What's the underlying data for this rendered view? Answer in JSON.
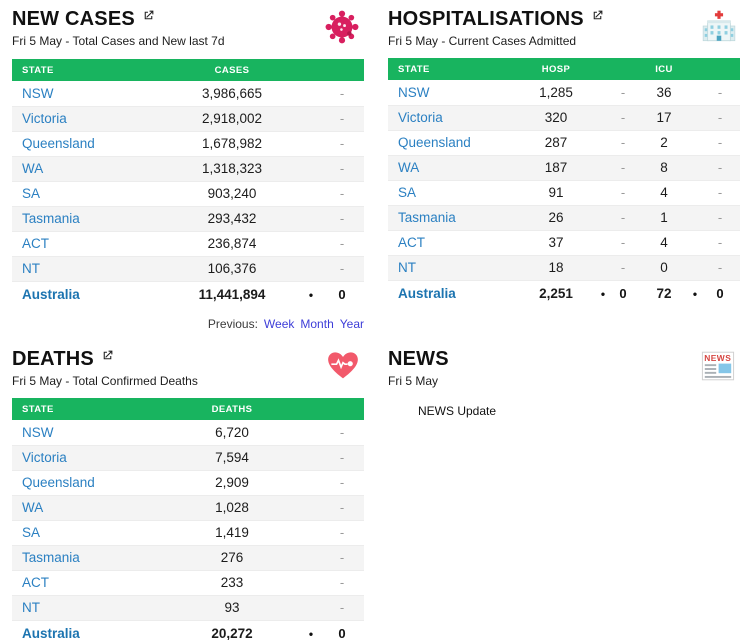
{
  "colors": {
    "table_header_green": "#18B45F",
    "state_link_blue": "#2B80C2",
    "total_link_blue": "#1C74B0",
    "change_dash_gray": "#999999",
    "previous_link_blue": "#3D3DD8",
    "virus_icon_pink": "#D81F5F",
    "heart_icon_red": "#F2596B",
    "hospital_cross_red": "#E23B3B",
    "news_headline_red": "#D64541"
  },
  "panels": {
    "new_cases": {
      "title": "NEW CASES",
      "subtitle": "Fri 5 May - Total Cases and New last 7d",
      "icon": "virus-icon",
      "columns": [
        "STATE",
        "CASES"
      ],
      "rows": [
        {
          "state": "NSW",
          "cases": "3,986,665",
          "change": "-"
        },
        {
          "state": "Victoria",
          "cases": "2,918,002",
          "change": "-"
        },
        {
          "state": "Queensland",
          "cases": "1,678,982",
          "change": "-"
        },
        {
          "state": "WA",
          "cases": "1,318,323",
          "change": "-"
        },
        {
          "state": "SA",
          "cases": "903,240",
          "change": "-"
        },
        {
          "state": "Tasmania",
          "cases": "293,432",
          "change": "-"
        },
        {
          "state": "ACT",
          "cases": "236,874",
          "change": "-"
        },
        {
          "state": "NT",
          "cases": "106,376",
          "change": "-"
        }
      ],
      "total": {
        "state": "Australia",
        "cases": "11,441,894",
        "bullet": "•",
        "change": "0"
      },
      "previous": {
        "label": "Previous:",
        "links": [
          "Week",
          "Month",
          "Year"
        ]
      }
    },
    "hospitalisations": {
      "title": "HOSPITALISATIONS",
      "subtitle": "Fri 5 May - Current Cases Admitted",
      "icon": "hospital-icon",
      "columns": [
        "STATE",
        "HOSP",
        "ICU"
      ],
      "rows": [
        {
          "state": "NSW",
          "hosp": "1,285",
          "hosp_change": "-",
          "icu": "36",
          "icu_change": "-"
        },
        {
          "state": "Victoria",
          "hosp": "320",
          "hosp_change": "-",
          "icu": "17",
          "icu_change": "-"
        },
        {
          "state": "Queensland",
          "hosp": "287",
          "hosp_change": "-",
          "icu": "2",
          "icu_change": "-"
        },
        {
          "state": "WA",
          "hosp": "187",
          "hosp_change": "-",
          "icu": "8",
          "icu_change": "-"
        },
        {
          "state": "SA",
          "hosp": "91",
          "hosp_change": "-",
          "icu": "4",
          "icu_change": "-"
        },
        {
          "state": "Tasmania",
          "hosp": "26",
          "hosp_change": "-",
          "icu": "1",
          "icu_change": "-"
        },
        {
          "state": "ACT",
          "hosp": "37",
          "hosp_change": "-",
          "icu": "4",
          "icu_change": "-"
        },
        {
          "state": "NT",
          "hosp": "18",
          "hosp_change": "-",
          "icu": "0",
          "icu_change": "-"
        }
      ],
      "total": {
        "state": "Australia",
        "hosp": "2,251",
        "bullet1": "•",
        "hosp_change": "0",
        "icu": "72",
        "bullet2": "•",
        "icu_change": "0"
      }
    },
    "deaths": {
      "title": "DEATHS",
      "subtitle": "Fri 5 May - Total Confirmed Deaths",
      "icon": "heart-pulse-icon",
      "columns": [
        "STATE",
        "DEATHS"
      ],
      "rows": [
        {
          "state": "NSW",
          "deaths": "6,720",
          "change": "-"
        },
        {
          "state": "Victoria",
          "deaths": "7,594",
          "change": "-"
        },
        {
          "state": "Queensland",
          "deaths": "2,909",
          "change": "-"
        },
        {
          "state": "WA",
          "deaths": "1,028",
          "change": "-"
        },
        {
          "state": "SA",
          "deaths": "1,419",
          "change": "-"
        },
        {
          "state": "Tasmania",
          "deaths": "276",
          "change": "-"
        },
        {
          "state": "ACT",
          "deaths": "233",
          "change": "-"
        },
        {
          "state": "NT",
          "deaths": "93",
          "change": "-"
        }
      ],
      "total": {
        "state": "Australia",
        "deaths": "20,272",
        "bullet": "•",
        "change": "0"
      }
    },
    "news": {
      "title": "NEWS",
      "subtitle": "Fri 5 May",
      "icon": "news-icon",
      "items": [
        "NEWS Update"
      ]
    }
  }
}
